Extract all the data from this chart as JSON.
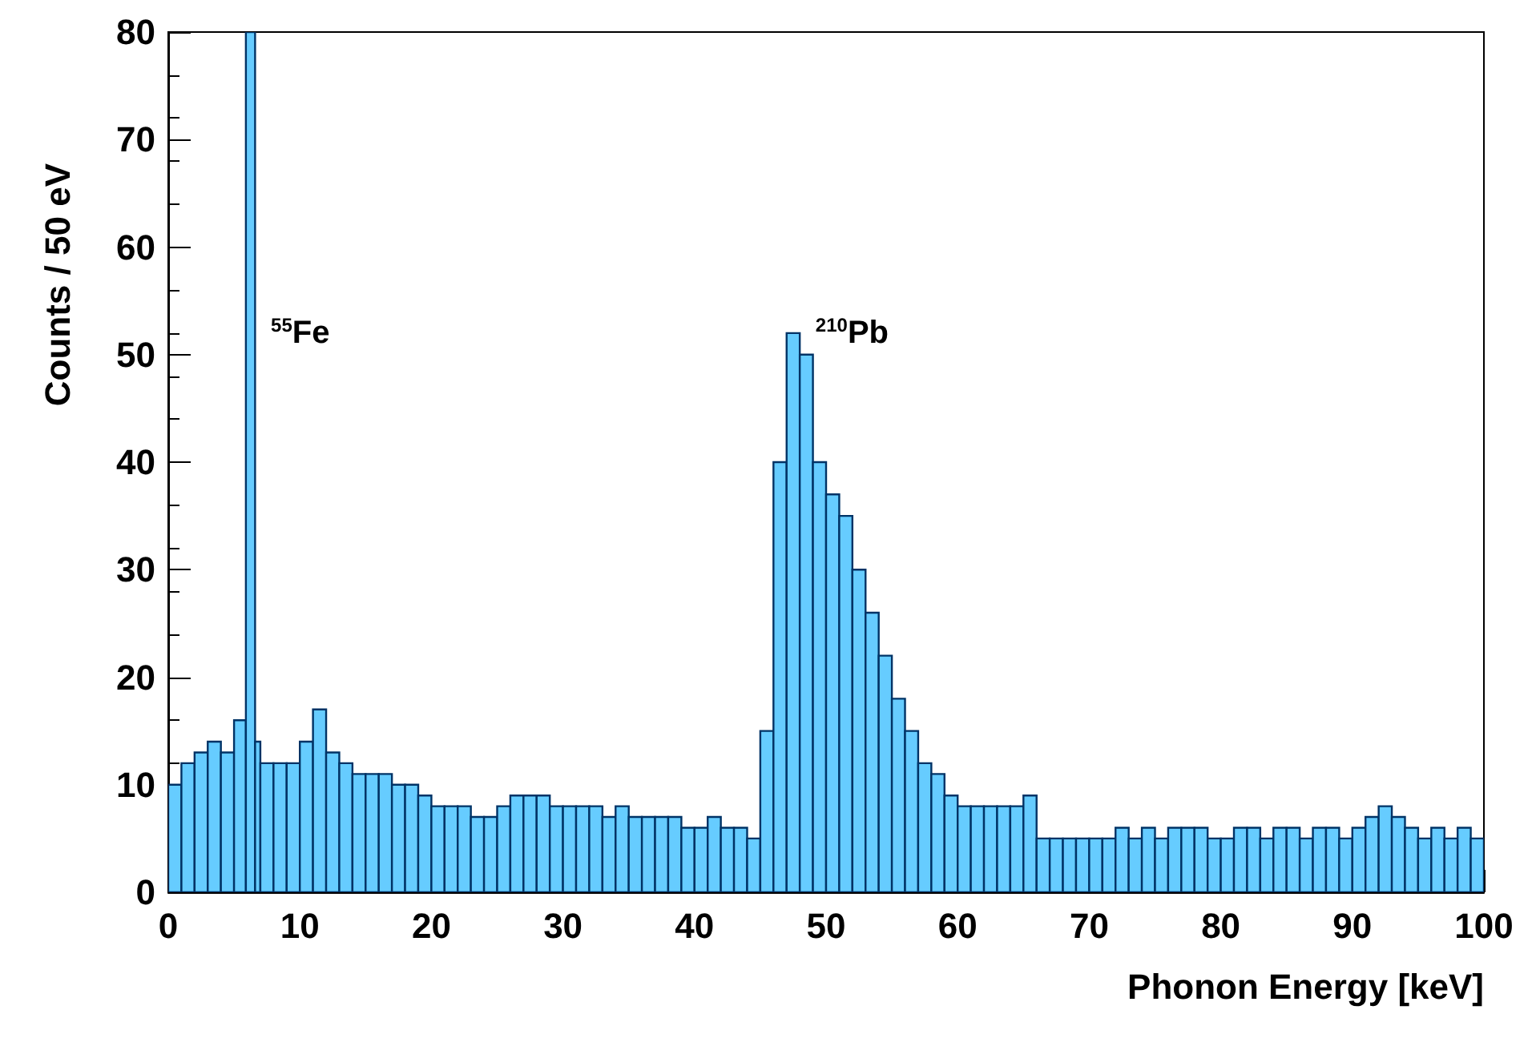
{
  "chart_data": {
    "type": "histogram",
    "xlabel": "Phonon Energy [keV]",
    "ylabel": "Counts / 50 eV",
    "color": "#66ccff",
    "bins": [
      0,
      1,
      2,
      3,
      4,
      5,
      5.9,
      6.6,
      7,
      8,
      9,
      10,
      11,
      12,
      13,
      14,
      15,
      16,
      17,
      18,
      19,
      20,
      21,
      22,
      23,
      24,
      25,
      26,
      27,
      28,
      29,
      30,
      31,
      32,
      33,
      34,
      35,
      36,
      37,
      38,
      39,
      40,
      41,
      42,
      43,
      44,
      45,
      46,
      47,
      48,
      49,
      50,
      51,
      52,
      53,
      54,
      55,
      56,
      57,
      58,
      59,
      60,
      61,
      62,
      63,
      64,
      65,
      66,
      67,
      68,
      69,
      70,
      71,
      72,
      73,
      74,
      75,
      76,
      77,
      78,
      79,
      80,
      81,
      82,
      83,
      84,
      85,
      86,
      87,
      88,
      89,
      90,
      91,
      92,
      93,
      94,
      95,
      96,
      97,
      98,
      99,
      100
    ],
    "values": [
      10,
      12,
      13,
      14,
      13,
      16,
      80,
      14,
      12,
      12,
      12,
      14,
      17,
      13,
      12,
      11,
      11,
      11,
      10,
      10,
      9,
      8,
      8,
      8,
      7,
      7,
      8,
      9,
      9,
      9,
      8,
      8,
      8,
      8,
      7,
      8,
      7,
      7,
      7,
      7,
      6,
      6,
      7,
      6,
      6,
      5,
      15,
      40,
      52,
      50,
      40,
      37,
      35,
      30,
      26,
      22,
      18,
      15,
      12,
      11,
      9,
      8,
      8,
      8,
      8,
      8,
      9,
      5,
      5,
      5,
      5,
      5,
      5,
      6,
      5,
      6,
      5,
      6,
      6,
      6,
      5,
      5,
      6,
      6,
      5,
      6,
      6,
      5,
      6,
      6,
      5,
      6,
      7,
      8,
      7,
      6,
      5,
      6,
      5,
      6,
      5
    ],
    "xlim": [
      0,
      100
    ],
    "xticks": [
      0,
      10,
      20,
      30,
      40,
      50,
      60,
      70,
      80,
      90,
      100
    ],
    "ylim": [
      0,
      80
    ],
    "yticks": [
      0,
      10,
      20,
      30,
      40,
      50,
      60,
      70,
      80
    ],
    "annotations": [
      "$^{55}$Fe",
      "$^{210}$Pb"
    ],
    "grid": false
  }
}
